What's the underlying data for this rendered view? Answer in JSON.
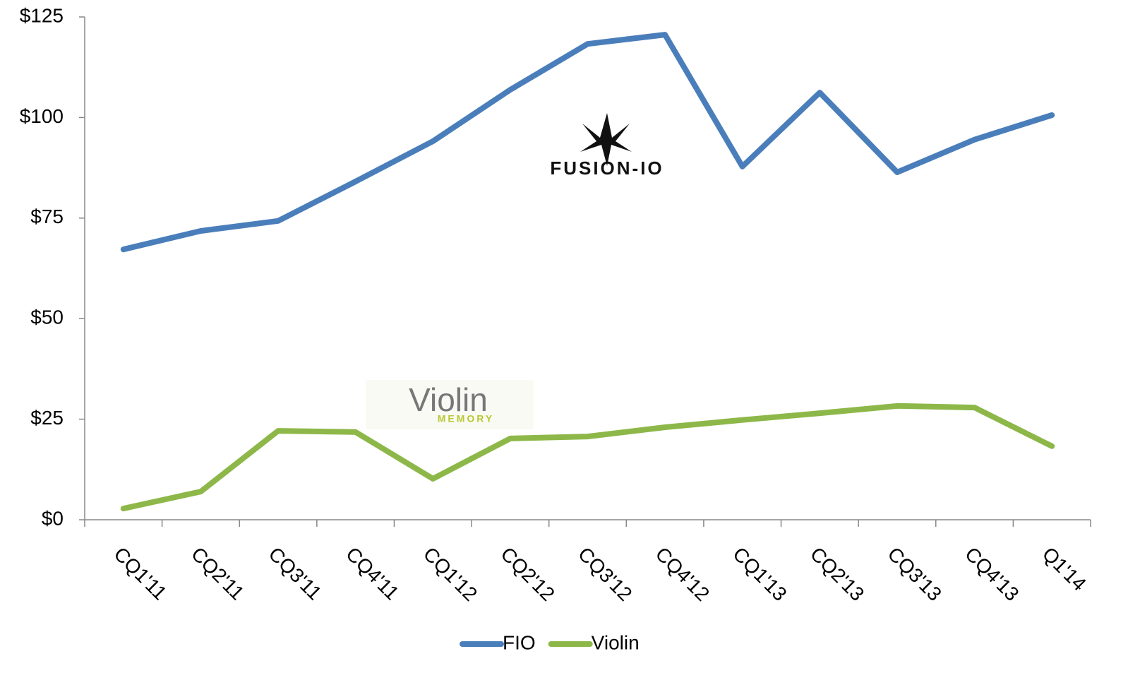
{
  "chart_data": {
    "type": "line",
    "categories": [
      "CQ1'11",
      "CQ2'11",
      "CQ3'11",
      "CQ4'11",
      "CQ1'12",
      "CQ2'12",
      "CQ3'12",
      "CQ4'12",
      "CQ1'13",
      "CQ2'13",
      "CQ3'13",
      "CQ4'13",
      "Q1'14"
    ],
    "series": [
      {
        "name": "FIO",
        "color": "#4a7ebb",
        "values": [
          67.2,
          71.8,
          74.3,
          84.1,
          94.1,
          106.9,
          118.3,
          120.6,
          87.8,
          106.2,
          86.4,
          94.5,
          100.6
        ]
      },
      {
        "name": "Violin",
        "color": "#8db849",
        "values": [
          2.8,
          7.0,
          22.1,
          21.8,
          10.2,
          20.2,
          20.7,
          23.0,
          24.8,
          26.5,
          28.3,
          27.9,
          18.3
        ]
      }
    ],
    "ylim": [
      0,
      125
    ],
    "yticks": [
      {
        "value": 0,
        "label": "$0"
      },
      {
        "value": 25,
        "label": "$25"
      },
      {
        "value": 50,
        "label": "$50"
      },
      {
        "value": 75,
        "label": "$75"
      },
      {
        "value": 100,
        "label": "$100"
      },
      {
        "value": 125,
        "label": "$125"
      }
    ],
    "legend": "bottom",
    "annotations": [
      "FUSION-IO",
      "Violin",
      "MEMORY"
    ]
  }
}
